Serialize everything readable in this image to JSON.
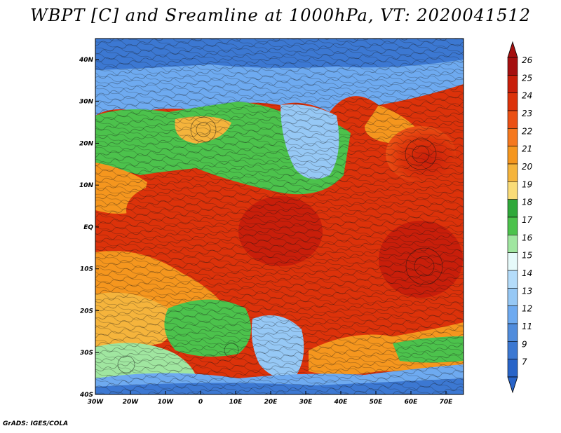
{
  "title": "WBPT [C] and Sreamline at 1000hPa, VT: 2020041512",
  "credit": "GrADS: IGES/COLA",
  "map": {
    "lon_labels": [
      "30W",
      "20W",
      "10W",
      "0",
      "10E",
      "20E",
      "30E",
      "40E",
      "50E",
      "60E",
      "70E"
    ],
    "lon_values": [
      -30,
      -20,
      -10,
      0,
      10,
      20,
      30,
      40,
      50,
      60,
      70
    ],
    "lat_labels": [
      "40N",
      "30N",
      "20N",
      "10N",
      "EQ",
      "10S",
      "20S",
      "30S",
      "40S"
    ],
    "lat_values": [
      40,
      30,
      20,
      10,
      0,
      -10,
      -20,
      -30,
      -40
    ],
    "lon_range": [
      -30,
      75
    ],
    "lat_range": [
      -40,
      45
    ]
  },
  "colorbar": {
    "labels": [
      "26",
      "25",
      "24",
      "23",
      "22",
      "21",
      "20",
      "19",
      "18",
      "17",
      "16",
      "15",
      "14",
      "13",
      "12",
      "11",
      "9",
      "7"
    ],
    "colors": [
      "#a50f0f",
      "#c81e0a",
      "#dc320a",
      "#eb5014",
      "#f5781e",
      "#f5961e",
      "#f5b43c",
      "#fadc78",
      "#2fa83a",
      "#4cc24c",
      "#a0e6a0",
      "#e6fafa",
      "#b4dcfa",
      "#96c8f5",
      "#6eaaf0",
      "#508cdc",
      "#3c78d2",
      "#2864c8"
    ]
  }
}
